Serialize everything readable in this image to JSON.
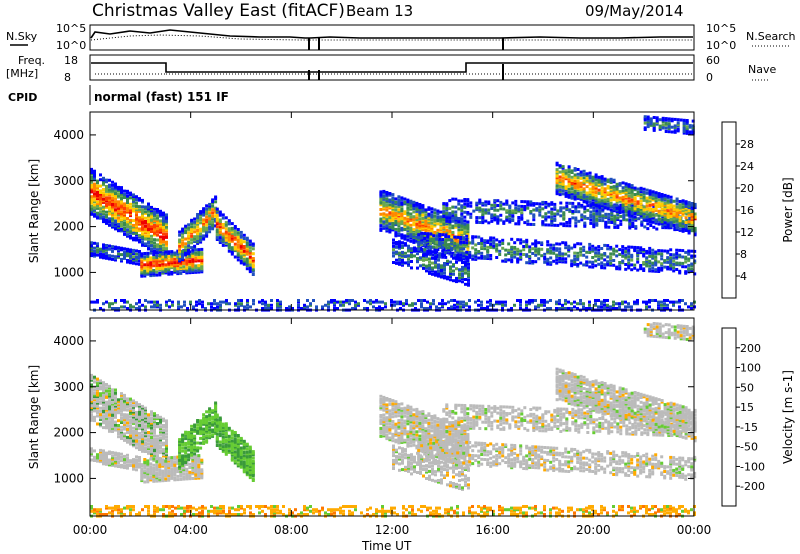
{
  "header": {
    "title": "Christmas Valley East (fitACF)",
    "beam": "Beam 13",
    "date": "09/May/2014"
  },
  "params": {
    "nsky_label": "N.Sky",
    "nsearch_label": "N.Search",
    "freq_label": "Freq.",
    "freq_unit": "[MHz]",
    "nave_label": "Nave",
    "cpid_label": "CPID",
    "cpid_value": "normal (fast) 151 IF",
    "noise_ticks": [
      "10^5",
      "10^0"
    ],
    "freq_ticks": [
      "18",
      "8"
    ],
    "nave_ticks": [
      "60",
      "0"
    ]
  },
  "chart_data": [
    {
      "type": "heatmap",
      "panel": "power",
      "ylabel": "Slant Range [km]",
      "xlabel": "Time UT",
      "x_ticks": [
        "00:00",
        "04:00",
        "08:00",
        "12:00",
        "16:00",
        "20:00",
        "00:00"
      ],
      "y_ticks": [
        1000,
        2000,
        3000,
        4000
      ],
      "ylim": [
        180,
        4500
      ],
      "colorbar": {
        "label": "Power [dB]",
        "ticks": [
          4,
          8,
          12,
          16,
          20,
          24,
          28
        ],
        "colors": [
          "#0000ff",
          "#2050c0",
          "#3a8a50",
          "#6aa84f",
          "#ffcc00",
          "#ff8800",
          "#ff4000",
          "#ee0000"
        ]
      }
    },
    {
      "type": "heatmap",
      "panel": "velocity",
      "ylabel": "Slant Range [km]",
      "xlabel": "Time UT",
      "x_ticks": [
        "00:00",
        "04:00",
        "08:00",
        "12:00",
        "16:00",
        "20:00",
        "00:00"
      ],
      "y_ticks": [
        1000,
        2000,
        3000,
        4000
      ],
      "ylim": [
        180,
        4500
      ],
      "colorbar": {
        "label": "Velocity [m s-1]",
        "ticks": [
          200,
          100,
          50,
          15,
          -15,
          -50,
          -100,
          -200
        ],
        "colors": [
          "#0000ff",
          "#2050c0",
          "#3a9a3a",
          "#66cc33",
          "#bbbbbb",
          "#ffaa00",
          "#ff7700",
          "#ff3300",
          "#ee0000"
        ]
      }
    }
  ],
  "xaxis_label": "Time UT"
}
